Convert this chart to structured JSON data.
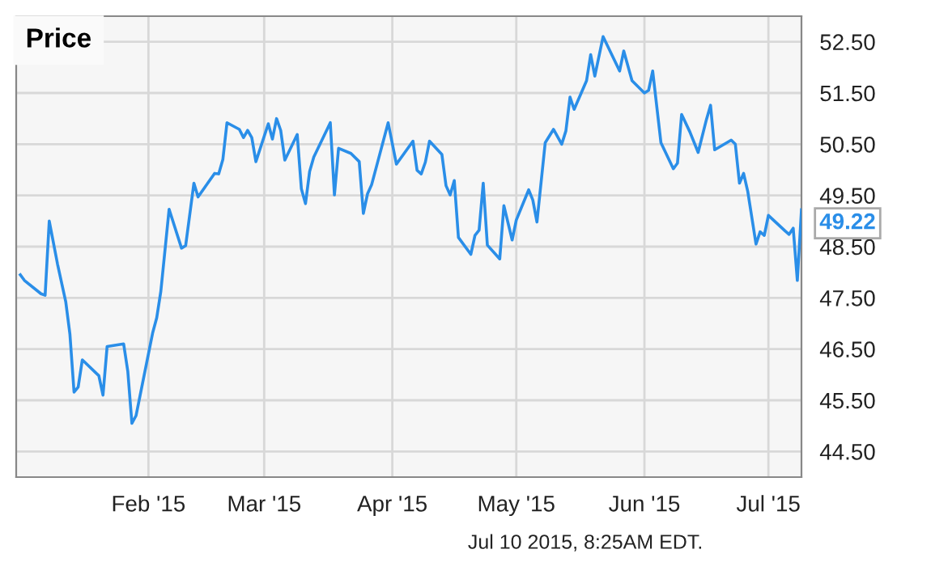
{
  "chart_data": {
    "type": "line",
    "title": "Price",
    "x": [
      "2015-01-01",
      "2015-01-02",
      "2015-01-06",
      "2015-01-07",
      "2015-01-08",
      "2015-01-10",
      "2015-01-12",
      "2015-01-13",
      "2015-01-14",
      "2015-01-15",
      "2015-01-16",
      "2015-01-20",
      "2015-01-21",
      "2015-01-22",
      "2015-01-26",
      "2015-01-27",
      "2015-01-28",
      "2015-01-29",
      "2015-02-02",
      "2015-02-03",
      "2015-02-04",
      "2015-02-06",
      "2015-02-09",
      "2015-02-10",
      "2015-02-12",
      "2015-02-13",
      "2015-02-17",
      "2015-02-18",
      "2015-02-19",
      "2015-02-20",
      "2015-02-23",
      "2015-02-24",
      "2015-02-25",
      "2015-02-26",
      "2015-02-27",
      "2015-03-02",
      "2015-03-03",
      "2015-03-04",
      "2015-03-05",
      "2015-03-06",
      "2015-03-09",
      "2015-03-10",
      "2015-03-11",
      "2015-03-12",
      "2015-03-13",
      "2015-03-17",
      "2015-03-18",
      "2015-03-19",
      "2015-03-22",
      "2015-03-24",
      "2015-03-25",
      "2015-03-26",
      "2015-03-27",
      "2015-03-31",
      "2015-04-02",
      "2015-04-06",
      "2015-04-07",
      "2015-04-08",
      "2015-04-09",
      "2015-04-10",
      "2015-04-13",
      "2015-04-14",
      "2015-04-15",
      "2015-04-16",
      "2015-04-17",
      "2015-04-20",
      "2015-04-21",
      "2015-04-22",
      "2015-04-23",
      "2015-04-24",
      "2015-04-27",
      "2015-04-28",
      "2015-04-30",
      "2015-05-01",
      "2015-05-04",
      "2015-05-05",
      "2015-05-06",
      "2015-05-08",
      "2015-05-10",
      "2015-05-12",
      "2015-05-13",
      "2015-05-14",
      "2015-05-15",
      "2015-05-18",
      "2015-05-19",
      "2015-05-20",
      "2015-05-22",
      "2015-05-26",
      "2015-05-27",
      "2015-05-29",
      "2015-06-01",
      "2015-06-02",
      "2015-06-03",
      "2015-06-05",
      "2015-06-08",
      "2015-06-09",
      "2015-06-10",
      "2015-06-12",
      "2015-06-14",
      "2015-06-16",
      "2015-06-17",
      "2015-06-18",
      "2015-06-22",
      "2015-06-23",
      "2015-06-24",
      "2015-06-25",
      "2015-06-26",
      "2015-06-28",
      "2015-06-29",
      "2015-06-30",
      "2015-07-01",
      "2015-07-05",
      "2015-07-06",
      "2015-07-07",
      "2015-07-08",
      "2015-07-09"
    ],
    "series": [
      {
        "color": "#2a8ee8",
        "values": [
          47.95,
          47.84,
          47.58,
          47.55,
          49.0,
          48.16,
          47.42,
          46.79,
          45.66,
          45.76,
          46.29,
          45.98,
          45.6,
          46.55,
          46.6,
          46.07,
          45.05,
          45.2,
          46.81,
          47.11,
          47.63,
          49.23,
          48.47,
          48.52,
          49.74,
          49.47,
          49.93,
          49.92,
          50.2,
          50.92,
          50.79,
          50.63,
          50.77,
          50.63,
          50.16,
          50.9,
          50.6,
          51.0,
          50.77,
          50.19,
          50.69,
          49.63,
          49.34,
          49.97,
          50.25,
          50.92,
          49.51,
          50.42,
          50.32,
          50.16,
          49.15,
          49.53,
          49.71,
          50.92,
          50.11,
          50.56,
          49.99,
          49.92,
          50.15,
          50.56,
          50.3,
          49.69,
          49.51,
          49.79,
          48.68,
          48.35,
          48.72,
          48.82,
          49.74,
          48.53,
          48.26,
          49.3,
          48.63,
          49.02,
          49.61,
          49.41,
          48.98,
          50.53,
          50.79,
          50.5,
          50.76,
          51.42,
          51.18,
          51.74,
          52.25,
          51.83,
          52.6,
          51.93,
          52.32,
          51.74,
          51.5,
          51.55,
          51.93,
          50.53,
          50.02,
          50.13,
          51.08,
          50.74,
          50.34,
          50.98,
          51.26,
          50.39,
          50.58,
          50.5,
          49.74,
          49.93,
          49.58,
          48.55,
          48.79,
          48.72,
          49.11,
          48.81,
          48.74,
          48.86,
          47.84,
          49.22
        ]
      }
    ],
    "xlim": [
      "2014-12-31",
      "2015-07-09"
    ],
    "xticks": [
      {
        "value": "2015-02-01",
        "label": "Feb '15"
      },
      {
        "value": "2015-03-01",
        "label": "Mar '15"
      },
      {
        "value": "2015-04-01",
        "label": "Apr '15"
      },
      {
        "value": "2015-05-01",
        "label": "May '15"
      },
      {
        "value": "2015-06-01",
        "label": "Jun '15"
      },
      {
        "value": "2015-07-01",
        "label": "Jul '15"
      }
    ],
    "ylim": [
      44,
      53
    ],
    "yticks": [
      {
        "value": 44.5,
        "label": "44.50"
      },
      {
        "value": 45.5,
        "label": "45.50"
      },
      {
        "value": 46.5,
        "label": "46.50"
      },
      {
        "value": 47.5,
        "label": "47.50"
      },
      {
        "value": 48.5,
        "label": "48.50"
      },
      {
        "value": 49.5,
        "label": "49.50"
      },
      {
        "value": 50.5,
        "label": "50.50"
      },
      {
        "value": 51.5,
        "label": "51.50"
      },
      {
        "value": 52.5,
        "label": "52.50"
      }
    ],
    "grid": true,
    "legend": false,
    "marker": "none",
    "line_style": "solid",
    "annotations": [
      {
        "text": "49.22",
        "x": "2015-07-09",
        "y": 49.22
      },
      "Jul 10 2015, 8:25AM EDT."
    ]
  }
}
